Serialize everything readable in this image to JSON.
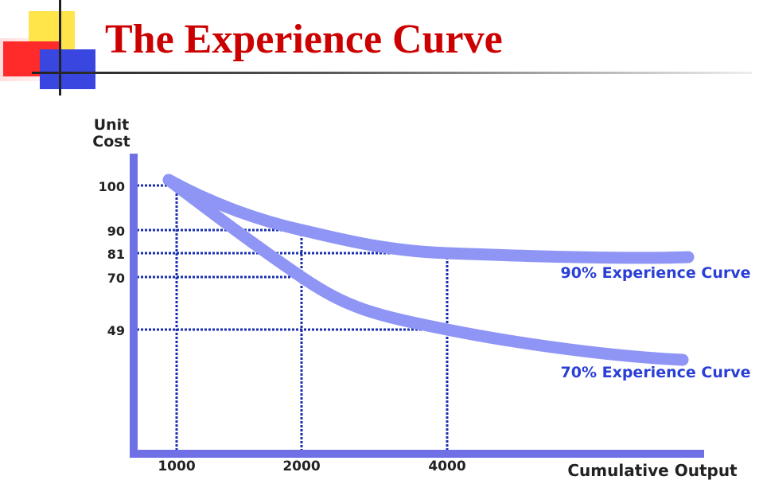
{
  "slide": {
    "title": "The Experience Curve"
  },
  "chart_data": {
    "type": "line",
    "ylabel_line1": "Unit",
    "ylabel_line2": "Cost",
    "xlabel": "Cumulative Output",
    "x_ticks": [
      "1000",
      "2000",
      "4000"
    ],
    "y_ticks": [
      "100",
      "90",
      "81",
      "70",
      "49"
    ],
    "series": [
      {
        "name": "90% Experience Curve",
        "x": [
          1000,
          2000,
          4000
        ],
        "y": [
          100,
          90,
          81
        ]
      },
      {
        "name": "70% Experience Curve",
        "x": [
          1000,
          2000,
          4000
        ],
        "y": [
          100,
          70,
          49
        ]
      }
    ],
    "guide_points": [
      {
        "x": 1000,
        "y": 100
      },
      {
        "x": 2000,
        "y": 90
      },
      {
        "x": 2000,
        "y": 70
      },
      {
        "x": 4000,
        "y": 81
      },
      {
        "x": 4000,
        "y": 49
      }
    ],
    "colors": {
      "axis": "#6f6fe6",
      "curve": "#8f95f5",
      "guide": "#1a2fb0",
      "curve_label": "#2a3fd6",
      "title": "#cc0000"
    }
  }
}
